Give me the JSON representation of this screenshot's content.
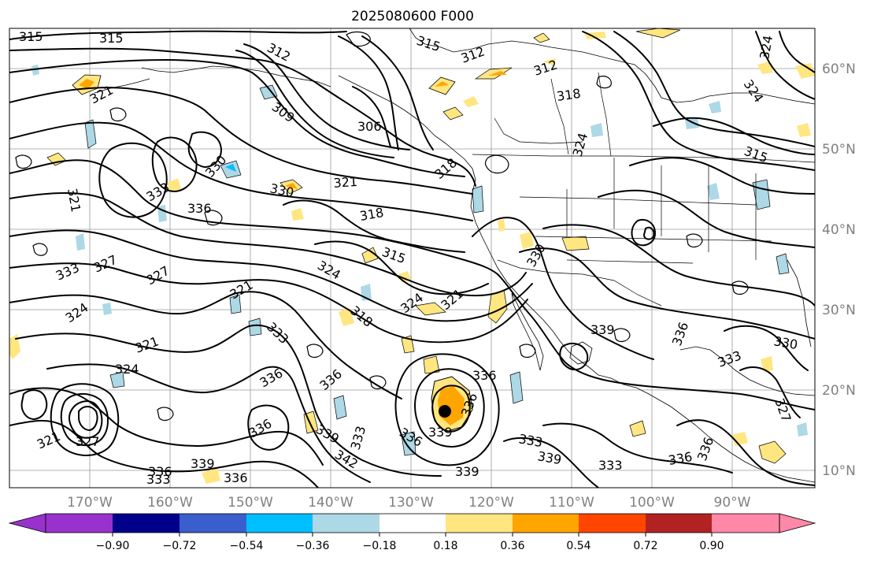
{
  "title": "2025080600 F000",
  "map": {
    "longitude_labels": [
      "170°W",
      "160°W",
      "150°W",
      "140°W",
      "130°W",
      "120°W",
      "110°W",
      "100°W",
      "90°W"
    ],
    "latitude_labels": [
      "60°N",
      "50°N",
      "40°N",
      "30°N",
      "20°N",
      "10°N"
    ],
    "grid_lines": true,
    "contour_labels": [
      "315",
      "315",
      "315",
      "312",
      "312",
      "312",
      "321",
      "309",
      "306",
      "318",
      "324",
      "315",
      "324",
      "330",
      "318",
      "321",
      "333",
      "336",
      "330",
      "321",
      "318",
      "315",
      "327",
      "333",
      "324",
      "321",
      "318",
      "324",
      "321",
      "327",
      "324",
      "321",
      "324",
      "333",
      "336",
      "336",
      "336",
      "336",
      "339",
      "339",
      "333",
      "339",
      "342",
      "336",
      "339",
      "336",
      "336",
      "333",
      "333",
      "339",
      "336",
      "339",
      "336",
      "333",
      "330",
      "336",
      "330",
      "333",
      "324",
      "327",
      "321",
      "327",
      "336"
    ],
    "cyclone_marker_color": "#000000"
  },
  "colorbar": {
    "tick_labels": [
      "−0.90",
      "−0.72",
      "−0.54",
      "−0.36",
      "−0.18",
      "0.18",
      "0.36",
      "0.54",
      "0.72",
      "0.90"
    ],
    "colors": [
      "#9932cc",
      "#00008b",
      "#3a5fcd",
      "#00bfff",
      "#add8e6",
      "#ffffff",
      "#ffe680",
      "#ffa500",
      "#ff4500",
      "#b22222",
      "#ff88a8"
    ],
    "extend": "both"
  }
}
